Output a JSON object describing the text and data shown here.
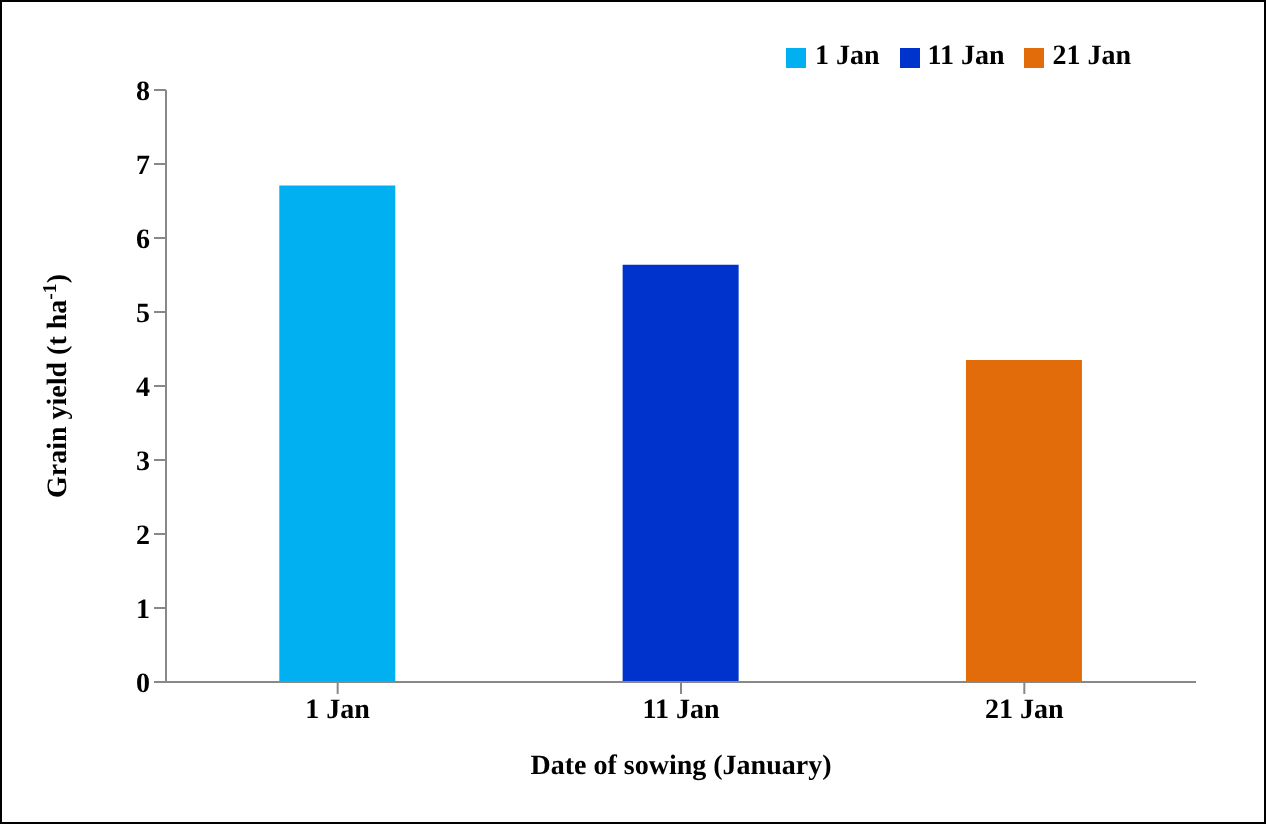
{
  "chart_data": {
    "type": "bar",
    "xlabel": "Date of sowing (January)",
    "ylabel": "Grain yield (t ha$^{-1}$)",
    "categories": [
      "1 Jan",
      "11 Jan",
      "21 Jan"
    ],
    "series": [
      {
        "name": "1 Jan",
        "color": "#00b0f0",
        "values": [
          6.71,
          null,
          null
        ]
      },
      {
        "name": "11 Jan",
        "color": "#0033cc",
        "values": [
          null,
          5.64,
          null
        ]
      },
      {
        "name": "21 Jan",
        "color": "#e36c0a",
        "values": [
          null,
          null,
          4.35
        ]
      }
    ],
    "stacked": true,
    "ylim": [
      0,
      8
    ],
    "yticks": [
      0,
      1,
      2,
      3,
      4,
      5,
      6,
      7,
      8
    ],
    "legend": "top"
  }
}
